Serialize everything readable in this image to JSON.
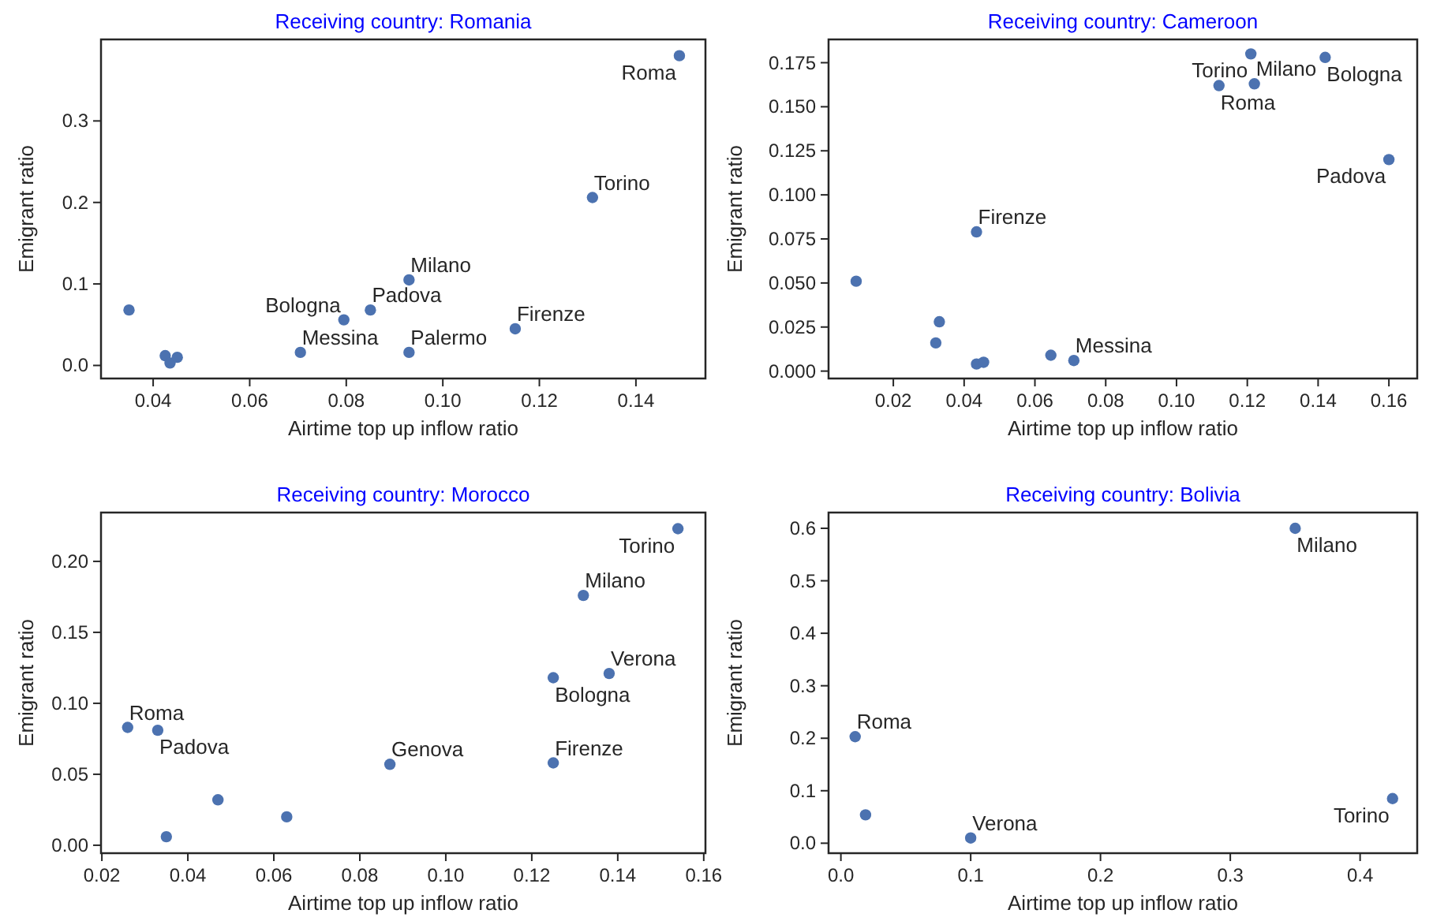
{
  "chart_data": [
    {
      "type": "scatter",
      "title": "Receiving country: Romania",
      "xlabel": "Airtime top up inflow ratio",
      "ylabel": "Emigrant ratio",
      "grid": false,
      "marker": "circle",
      "xlim": [
        0.0292,
        0.1544
      ],
      "ylim": [
        -0.016,
        0.4
      ],
      "xticks": [
        {
          "value": 0.04,
          "label": "0.04"
        },
        {
          "value": 0.06,
          "label": "0.06"
        },
        {
          "value": 0.08,
          "label": "0.08"
        },
        {
          "value": 0.1,
          "label": "0.10"
        },
        {
          "value": 0.12,
          "label": "0.12"
        },
        {
          "value": 0.14,
          "label": "0.14"
        }
      ],
      "yticks": [
        {
          "value": 0,
          "label": "0.0"
        },
        0.1,
        0.2,
        0.3
      ],
      "series": [
        {
          "color": "#4c72b0",
          "x": [
            0.035,
            0.0425,
            0.0435,
            0.045,
            0.0705,
            0.0795,
            0.085,
            0.093,
            0.093,
            0.115,
            0.131,
            0.149
          ],
          "values": [
            0.068,
            0.012,
            0.003,
            0.01,
            0.016,
            0.056,
            0.068,
            0.105,
            0.016,
            0.045,
            0.206,
            0.38
          ]
        }
      ],
      "annotations": [
        {
          "text": "Messina",
          "x": 0.0705,
          "y": 0.016
        },
        {
          "text": "Bologna",
          "x": 0.0795,
          "y": 0.056
        },
        {
          "text": "Padova",
          "x": 0.085,
          "y": 0.068
        },
        {
          "text": "Milano",
          "x": 0.093,
          "y": 0.105
        },
        {
          "text": "Palermo",
          "x": 0.093,
          "y": 0.016
        },
        {
          "text": "Firenze",
          "x": 0.115,
          "y": 0.045
        },
        {
          "text": "Torino",
          "x": 0.131,
          "y": 0.206
        },
        {
          "text": "Roma",
          "x": 0.149,
          "y": 0.38
        }
      ]
    },
    {
      "type": "scatter",
      "title": "Receiving country: Cameroon",
      "xlabel": "Airtime top up inflow ratio",
      "ylabel": "Emigrant ratio",
      "grid": false,
      "marker": "circle",
      "xlim": [
        0.0017,
        0.168
      ],
      "ylim": [
        -0.0042,
        0.1882
      ],
      "xticks": [
        0.02,
        0.04,
        0.06,
        0.08,
        {
          "value": 0.1,
          "label": "0.10"
        },
        0.12,
        0.14,
        0.16
      ],
      "yticks": [
        {
          "value": 0,
          "label": "0.000"
        },
        {
          "value": 0.025,
          "label": "0.025"
        },
        {
          "value": 0.05,
          "label": "0.050"
        },
        {
          "value": 0.075,
          "label": "0.075"
        },
        {
          "value": 0.1,
          "label": "0.100"
        },
        {
          "value": 0.125,
          "label": "0.125"
        },
        {
          "value": 0.15,
          "label": "0.150"
        },
        {
          "value": 0.175,
          "label": "0.175"
        }
      ],
      "series": [
        {
          "color": "#4c72b0",
          "x": [
            0.0095,
            0.032,
            0.033,
            0.0435,
            0.0455,
            0.0435,
            0.0645,
            0.071,
            0.112,
            0.121,
            0.122,
            0.142,
            0.16
          ],
          "values": [
            0.051,
            0.016,
            0.028,
            0.004,
            0.005,
            0.079,
            0.009,
            0.006,
            0.162,
            0.18,
            0.163,
            0.178,
            0.12
          ]
        }
      ],
      "annotations": [
        {
          "text": "Firenze",
          "x": 0.0435,
          "y": 0.079
        },
        {
          "text": "Messina",
          "x": 0.071,
          "y": 0.006
        },
        {
          "text": "Roma",
          "x": 0.112,
          "y": 0.162
        },
        {
          "text": "Torino",
          "x": 0.121,
          "y": 0.18
        },
        {
          "text": "Milano",
          "x": 0.122,
          "y": 0.163
        },
        {
          "text": "Bologna",
          "x": 0.142,
          "y": 0.178
        },
        {
          "text": "Padova",
          "x": 0.16,
          "y": 0.12
        }
      ]
    },
    {
      "type": "scatter",
      "title": "Receiving country: Morocco",
      "xlabel": "Airtime top up inflow ratio",
      "ylabel": "Emigrant ratio",
      "grid": false,
      "marker": "circle",
      "xlim": [
        0.0198,
        0.1604
      ],
      "ylim": [
        -0.0056,
        0.2344
      ],
      "xticks": [
        0.02,
        0.04,
        0.06,
        0.08,
        {
          "value": 0.1,
          "label": "0.10"
        },
        0.12,
        0.14,
        0.16
      ],
      "yticks": [
        {
          "value": 0,
          "label": "0.00"
        },
        0.05,
        {
          "value": 0.1,
          "label": "0.10"
        },
        0.15,
        {
          "value": 0.2,
          "label": "0.20"
        }
      ],
      "series": [
        {
          "color": "#4c72b0",
          "x": [
            0.026,
            0.033,
            0.035,
            0.047,
            0.063,
            0.087,
            0.125,
            0.125,
            0.132,
            0.138,
            0.154
          ],
          "values": [
            0.083,
            0.081,
            0.006,
            0.032,
            0.02,
            0.057,
            0.118,
            0.058,
            0.176,
            0.121,
            0.223
          ]
        }
      ],
      "annotations": [
        {
          "text": "Roma",
          "x": 0.026,
          "y": 0.083
        },
        {
          "text": "Padova",
          "x": 0.033,
          "y": 0.081
        },
        {
          "text": "Genova",
          "x": 0.087,
          "y": 0.057
        },
        {
          "text": "Bologna",
          "x": 0.125,
          "y": 0.118
        },
        {
          "text": "Firenze",
          "x": 0.125,
          "y": 0.058
        },
        {
          "text": "Milano",
          "x": 0.132,
          "y": 0.176
        },
        {
          "text": "Verona",
          "x": 0.138,
          "y": 0.121
        },
        {
          "text": "Torino",
          "x": 0.154,
          "y": 0.223
        }
      ]
    },
    {
      "type": "scatter",
      "title": "Receiving country: Bolivia",
      "xlabel": "Airtime top up inflow ratio",
      "ylabel": "Emigrant ratio",
      "grid": false,
      "marker": "circle",
      "xlim": [
        -0.0095,
        0.444
      ],
      "ylim": [
        -0.019,
        0.63
      ],
      "xticks": [
        {
          "value": 0,
          "label": "0.0"
        },
        0.1,
        0.2,
        0.3,
        0.4
      ],
      "yticks": [
        {
          "value": 0,
          "label": "0.0"
        },
        0.1,
        0.2,
        0.3,
        0.4,
        0.5,
        0.6
      ],
      "series": [
        {
          "color": "#4c72b0",
          "x": [
            0.011,
            0.019,
            0.1,
            0.35,
            0.425
          ],
          "values": [
            0.203,
            0.054,
            0.01,
            0.6,
            0.085
          ]
        }
      ],
      "annotations": [
        {
          "text": "Roma",
          "x": 0.011,
          "y": 0.203
        },
        {
          "text": "Verona",
          "x": 0.1,
          "y": 0.01
        },
        {
          "text": "Milano",
          "x": 0.35,
          "y": 0.6
        },
        {
          "text": "Torino",
          "x": 0.425,
          "y": 0.085
        }
      ]
    }
  ]
}
